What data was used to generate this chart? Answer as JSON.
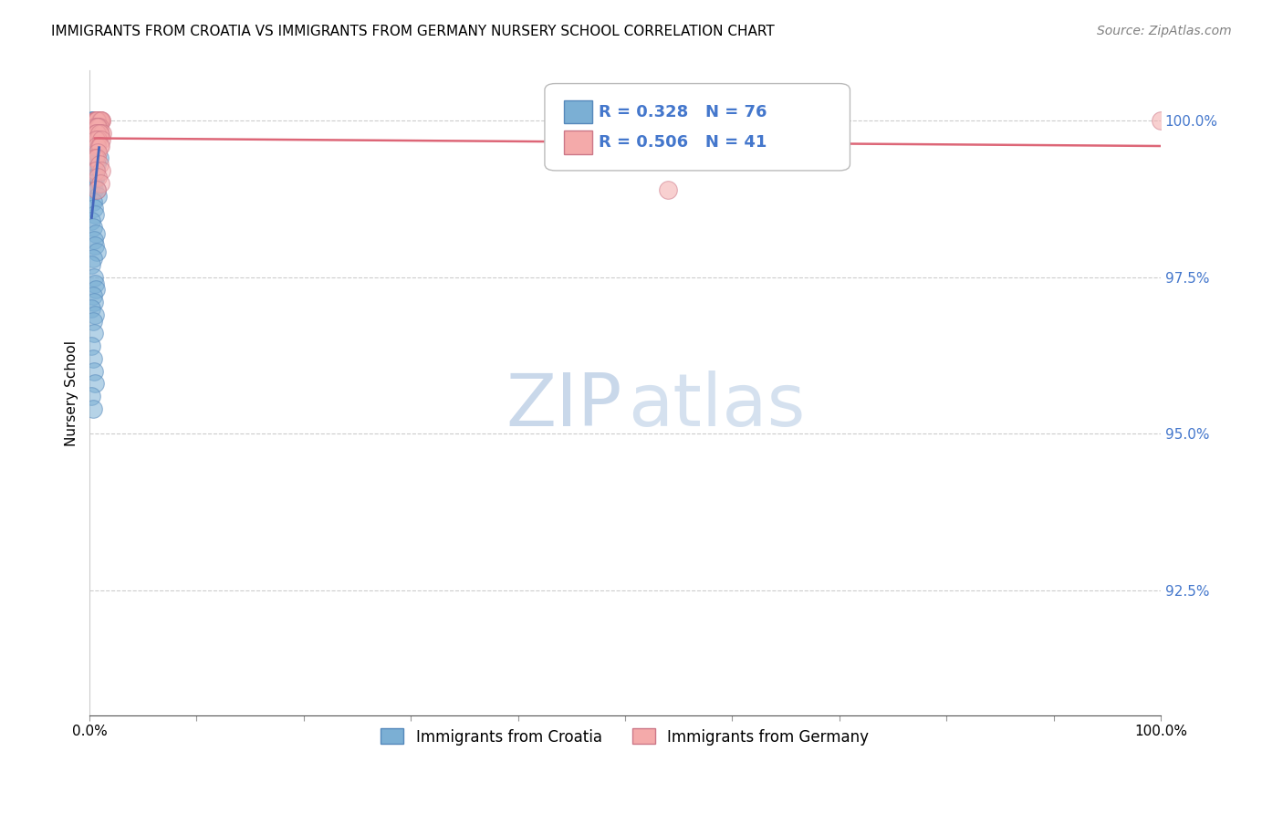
{
  "title": "IMMIGRANTS FROM CROATIA VS IMMIGRANTS FROM GERMANY NURSERY SCHOOL CORRELATION CHART",
  "source": "Source: ZipAtlas.com",
  "ylabel": "Nursery School",
  "ytick_labels": [
    "100.0%",
    "97.5%",
    "95.0%",
    "92.5%"
  ],
  "ytick_values": [
    1.0,
    0.975,
    0.95,
    0.925
  ],
  "xmin": 0.0,
  "xmax": 1.0,
  "ymin": 0.905,
  "ymax": 1.008,
  "legend_croatia": "Immigrants from Croatia",
  "legend_germany": "Immigrants from Germany",
  "R_croatia": "R = 0.328",
  "N_croatia": "N = 76",
  "R_germany": "R = 0.506",
  "N_germany": "N = 41",
  "color_croatia": "#7BAFD4",
  "color_croatia_edge": "#5588BB",
  "color_germany": "#F4AAAA",
  "color_germany_edge": "#CC7788",
  "color_trendline_croatia": "#4466BB",
  "color_trendline_germany": "#DD6677",
  "color_ytick": "#4477CC",
  "croatia_x": [
    0.003,
    0.004,
    0.005,
    0.006,
    0.002,
    0.008,
    0.003,
    0.004,
    0.007,
    0.009,
    0.003,
    0.005,
    0.004,
    0.003,
    0.006,
    0.004,
    0.005,
    0.002,
    0.003,
    0.006,
    0.007,
    0.004,
    0.003,
    0.005,
    0.002,
    0.004,
    0.008,
    0.003,
    0.006,
    0.007,
    0.005,
    0.004,
    0.003,
    0.002,
    0.006,
    0.003,
    0.004,
    0.009,
    0.005,
    0.007,
    0.002,
    0.003,
    0.004,
    0.005,
    0.006,
    0.002,
    0.003,
    0.004,
    0.007,
    0.008,
    0.003,
    0.004,
    0.005,
    0.002,
    0.003,
    0.006,
    0.004,
    0.005,
    0.007,
    0.003,
    0.002,
    0.004,
    0.005,
    0.006,
    0.003,
    0.004,
    0.002,
    0.005,
    0.003,
    0.004,
    0.002,
    0.003,
    0.004,
    0.005,
    0.002,
    0.003
  ],
  "croatia_y": [
    1.0,
    1.0,
    1.0,
    1.0,
    1.0,
    1.0,
    1.0,
    1.0,
    1.0,
    1.0,
    0.999,
    0.999,
    0.999,
    0.999,
    0.999,
    0.999,
    0.999,
    0.999,
    0.999,
    0.999,
    0.998,
    0.998,
    0.998,
    0.998,
    0.998,
    0.997,
    0.997,
    0.997,
    0.997,
    0.996,
    0.996,
    0.996,
    0.996,
    0.995,
    0.995,
    0.995,
    0.994,
    0.994,
    0.994,
    0.993,
    0.993,
    0.992,
    0.992,
    0.991,
    0.991,
    0.99,
    0.99,
    0.989,
    0.989,
    0.988,
    0.987,
    0.986,
    0.985,
    0.984,
    0.983,
    0.982,
    0.981,
    0.98,
    0.979,
    0.978,
    0.977,
    0.975,
    0.974,
    0.973,
    0.972,
    0.971,
    0.97,
    0.969,
    0.968,
    0.966,
    0.964,
    0.962,
    0.96,
    0.958,
    0.956,
    0.954
  ],
  "germany_x": [
    0.005,
    0.007,
    0.009,
    0.011,
    0.008,
    0.006,
    0.01,
    0.007,
    0.009,
    0.008,
    0.006,
    0.01,
    0.007,
    0.011,
    0.008,
    0.005,
    0.009,
    0.007,
    0.008,
    0.006,
    0.01,
    0.012,
    0.007,
    0.009,
    0.008,
    0.006,
    0.011,
    0.007,
    0.009,
    0.01,
    0.008,
    0.005,
    0.007,
    0.009,
    0.011,
    0.006,
    0.008,
    0.01,
    0.007,
    0.54,
    1.0
  ],
  "germany_y": [
    1.0,
    1.0,
    1.0,
    1.0,
    1.0,
    1.0,
    1.0,
    1.0,
    1.0,
    1.0,
    1.0,
    1.0,
    1.0,
    1.0,
    0.999,
    0.999,
    0.999,
    0.999,
    0.999,
    0.998,
    0.998,
    0.998,
    0.998,
    0.998,
    0.997,
    0.997,
    0.997,
    0.996,
    0.996,
    0.996,
    0.995,
    0.994,
    0.994,
    0.993,
    0.992,
    0.992,
    0.991,
    0.99,
    0.989,
    0.989,
    1.0
  ]
}
